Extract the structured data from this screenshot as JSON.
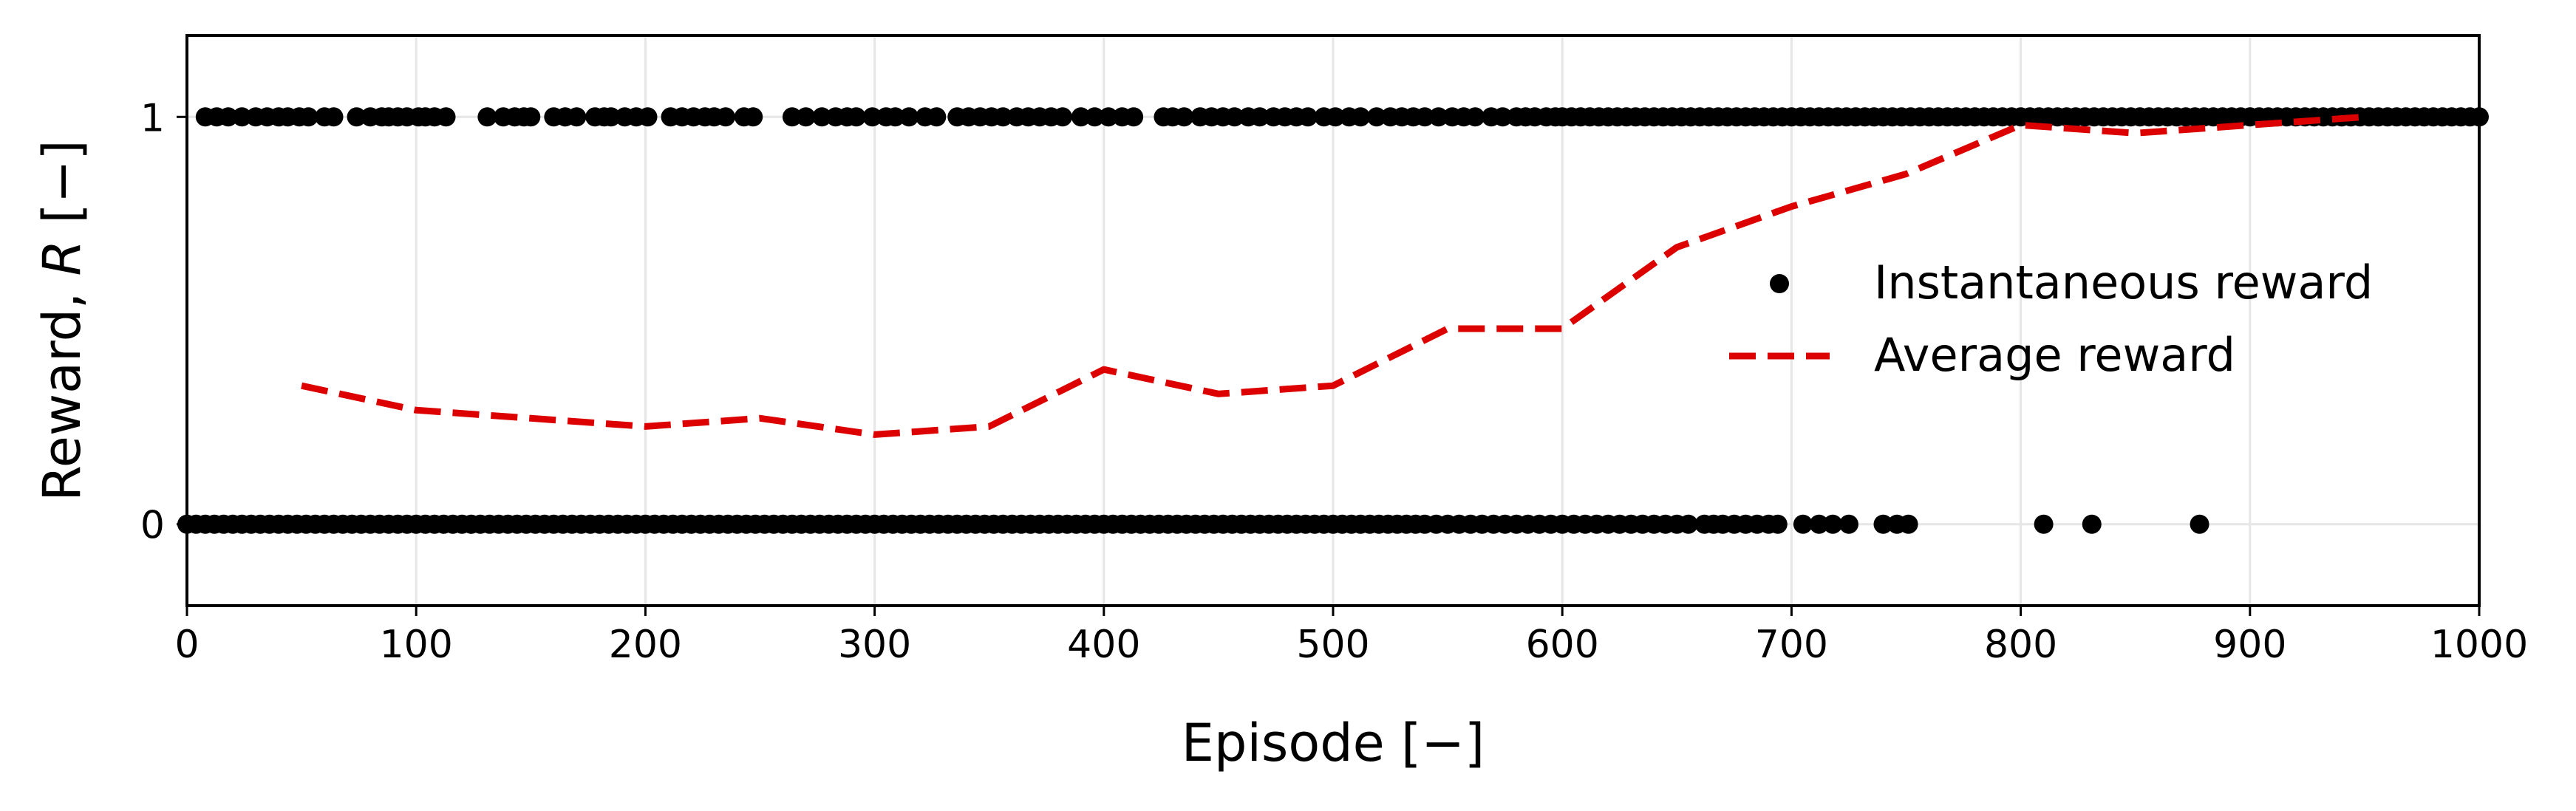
{
  "chart_data": {
    "type": "scatter",
    "xlabel": "Episode [−]",
    "ylabel_prefix": "Reward, ",
    "ylabel_var": "R",
    "ylabel_suffix": " [−]",
    "xlim": [
      0,
      1000
    ],
    "ylim": [
      -0.2,
      1.2
    ],
    "xticks": [
      0,
      100,
      200,
      300,
      400,
      500,
      600,
      700,
      800,
      900,
      1000
    ],
    "xtick_labels": [
      "0",
      "100",
      "200",
      "300",
      "400",
      "500",
      "600",
      "700",
      "800",
      "900",
      "1000"
    ],
    "yticks": [
      0,
      1
    ],
    "ytick_labels": [
      "0",
      "1"
    ],
    "grid": true,
    "legend_placement": "center-right",
    "series": [
      {
        "name": "Instantaneous reward",
        "kind": "scatter",
        "color": "#000000",
        "points_y1": [
          8,
          13,
          18,
          24,
          30,
          35,
          40,
          44,
          49,
          53,
          60,
          64,
          74,
          80,
          85,
          88,
          92,
          96,
          101,
          104,
          108,
          113,
          131,
          138,
          143,
          147,
          150,
          160,
          165,
          170,
          178,
          182,
          185,
          191,
          196,
          201,
          211,
          216,
          221,
          226,
          230,
          235,
          243,
          247,
          264,
          270,
          277,
          283,
          288,
          292,
          299,
          305,
          309,
          315,
          322,
          327,
          336,
          341,
          346,
          351,
          356,
          362,
          367,
          372,
          377,
          382,
          390,
          396,
          402,
          408,
          413,
          426,
          430,
          435,
          442,
          447,
          452,
          457,
          463,
          468,
          474,
          479,
          484,
          489,
          496,
          501,
          507,
          512,
          519,
          525,
          530,
          535,
          540,
          546,
          552,
          557,
          562,
          569,
          574,
          580,
          584,
          588,
          593,
          597,
          600,
          604,
          608,
          612,
          616,
          620,
          624,
          628,
          632,
          636,
          640,
          644,
          648,
          652,
          656,
          660,
          664,
          668,
          672,
          676,
          680,
          684,
          688,
          692,
          696,
          700,
          704,
          708,
          712,
          716,
          720,
          724,
          728,
          732,
          736,
          740,
          744,
          748,
          752,
          756,
          760,
          764,
          768,
          772,
          776,
          780,
          784,
          788,
          792,
          796,
          800,
          804,
          808,
          812,
          816,
          820,
          824,
          828,
          832,
          836,
          840,
          844,
          848,
          852,
          856,
          860,
          864,
          868,
          872,
          876,
          880,
          884,
          888,
          892,
          896,
          900,
          904,
          908,
          912,
          916,
          920,
          924,
          928,
          932,
          936,
          940,
          944,
          948,
          952,
          956,
          960,
          964,
          968,
          972,
          976,
          980,
          984,
          988,
          992,
          996,
          1000
        ],
        "points_y0": [
          0,
          4,
          8,
          12,
          16,
          20,
          24,
          28,
          32,
          36,
          40,
          44,
          48,
          52,
          56,
          60,
          64,
          68,
          72,
          76,
          80,
          84,
          88,
          92,
          96,
          100,
          104,
          108,
          112,
          116,
          120,
          124,
          128,
          132,
          136,
          140,
          144,
          148,
          152,
          156,
          160,
          164,
          168,
          172,
          176,
          180,
          184,
          188,
          192,
          196,
          200,
          204,
          208,
          212,
          216,
          220,
          224,
          228,
          232,
          236,
          240,
          244,
          248,
          252,
          256,
          260,
          264,
          268,
          272,
          276,
          280,
          284,
          288,
          292,
          296,
          300,
          304,
          308,
          312,
          316,
          320,
          324,
          328,
          332,
          336,
          340,
          344,
          348,
          352,
          356,
          360,
          364,
          368,
          372,
          376,
          380,
          384,
          388,
          392,
          396,
          400,
          404,
          408,
          412,
          416,
          420,
          424,
          428,
          432,
          436,
          440,
          444,
          448,
          452,
          456,
          460,
          464,
          468,
          472,
          476,
          480,
          484,
          488,
          492,
          496,
          500,
          504,
          508,
          512,
          516,
          520,
          524,
          528,
          532,
          536,
          540,
          545,
          550,
          555,
          560,
          565,
          570,
          575,
          580,
          585,
          590,
          595,
          600,
          605,
          610,
          615,
          620,
          625,
          630,
          635,
          640,
          645,
          650,
          655,
          662,
          666,
          670,
          675,
          680,
          685,
          690,
          694,
          705,
          712,
          718,
          725,
          740,
          746,
          751,
          810,
          831,
          878
        ]
      },
      {
        "name": "Average reward",
        "kind": "line",
        "style": "dashed",
        "color": "#dd0000",
        "x": [
          50,
          100,
          150,
          200,
          250,
          300,
          350,
          400,
          450,
          500,
          550,
          600,
          650,
          700,
          750,
          800,
          850,
          900,
          950
        ],
        "values": [
          0.34,
          0.28,
          0.26,
          0.24,
          0.26,
          0.22,
          0.24,
          0.38,
          0.32,
          0.34,
          0.48,
          0.48,
          0.68,
          0.78,
          0.86,
          0.98,
          0.96,
          0.98,
          1.0
        ]
      }
    ]
  }
}
